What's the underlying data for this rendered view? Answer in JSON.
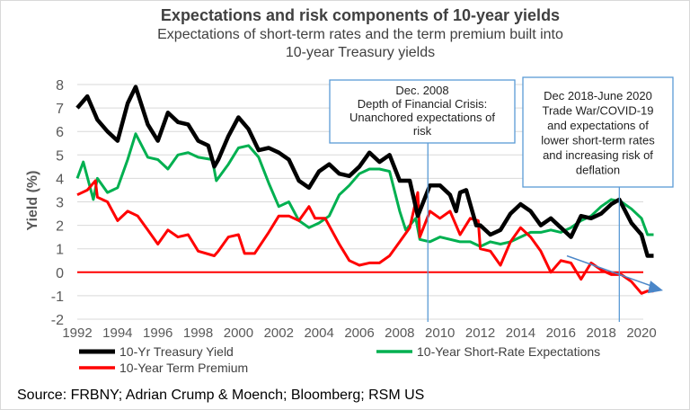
{
  "chart_data": {
    "type": "line",
    "title": "Expectations and risk components of 10-year yields",
    "subtitle": "Expectations of short-term rates and the term premium built into 10-year Treasury yields",
    "subtitle_lines": [
      "Expectations of short-term rates and the term premium built into",
      "10-year Treasury yields"
    ],
    "ylabel": "Yield (%)",
    "xlabel": "",
    "xlim": [
      1992,
      2020.7
    ],
    "ylim": [
      -2,
      8
    ],
    "xticks": [
      "1992",
      "1994",
      "1996",
      "1998",
      "2000",
      "2002",
      "2004",
      "2006",
      "2008",
      "2010",
      "2012",
      "2014",
      "2016",
      "2018",
      "2020"
    ],
    "yticks": [
      "8",
      "7",
      "6",
      "5",
      "4",
      "3",
      "2",
      "1",
      "0",
      "-1",
      "-2"
    ],
    "grid": "horizontal",
    "legend_placement": "bottom",
    "series": [
      {
        "name": "10-Yr Treasury Yield",
        "color": "#000000",
        "x": [
          1992,
          1992.5,
          1993,
          1993.5,
          1994,
          1994.5,
          1994.9,
          1995.5,
          1996,
          1996.5,
          1997,
          1997.5,
          1998,
          1998.5,
          1998.8,
          1999,
          1999.5,
          2000,
          2000.5,
          2001,
          2001.5,
          2002,
          2002.5,
          2003,
          2003.5,
          2004,
          2004.5,
          2005,
          2005.5,
          2006,
          2006.5,
          2007,
          2007.5,
          2008,
          2008.5,
          2008.9,
          2009.5,
          2010,
          2010.5,
          2010.8,
          2011,
          2011.3,
          2011.8,
          2012,
          2012.5,
          2013,
          2013.5,
          2014,
          2014.5,
          2015,
          2015.5,
          2016,
          2016.5,
          2017,
          2017.5,
          2018,
          2018.5,
          2018.9,
          2019.5,
          2019.8,
          2020,
          2020.3,
          2020.6
        ],
        "y": [
          7.0,
          7.5,
          6.5,
          6.0,
          5.6,
          7.2,
          7.9,
          6.3,
          5.6,
          6.8,
          6.4,
          6.3,
          5.6,
          5.4,
          4.5,
          4.8,
          5.8,
          6.6,
          6.1,
          5.2,
          5.3,
          5.1,
          4.8,
          3.9,
          3.6,
          4.3,
          4.6,
          4.2,
          4.1,
          4.5,
          5.1,
          4.7,
          5.0,
          3.9,
          3.9,
          2.4,
          3.7,
          3.7,
          3.3,
          2.6,
          3.4,
          3.5,
          2.0,
          2.0,
          1.6,
          1.8,
          2.5,
          2.9,
          2.6,
          2.0,
          2.3,
          1.9,
          1.5,
          2.4,
          2.3,
          2.5,
          2.9,
          3.1,
          2.1,
          1.8,
          1.6,
          0.7,
          0.7
        ]
      },
      {
        "name": "10-Year Short-Rate Expectations",
        "color": "#00b050",
        "x": [
          1992,
          1992.3,
          1992.8,
          1993,
          1993.5,
          1994,
          1994.5,
          1994.9,
          1995.5,
          1996,
          1996.5,
          1997,
          1997.5,
          1998,
          1998.7,
          1998.9,
          1999.5,
          2000,
          2000.5,
          2001,
          2001.5,
          2002,
          2002.5,
          2003,
          2003.5,
          2004,
          2004.5,
          2005,
          2005.5,
          2006,
          2006.5,
          2007,
          2007.5,
          2008,
          2008.3,
          2008.8,
          2009,
          2009.5,
          2010,
          2011,
          2011.5,
          2012,
          2012.5,
          2013,
          2013.5,
          2014,
          2014.5,
          2015,
          2015.5,
          2016,
          2016.5,
          2017,
          2017.5,
          2018,
          2018.5,
          2019,
          2019.5,
          2020,
          2020.3,
          2020.6
        ],
        "y": [
          4.0,
          4.7,
          3.1,
          4.0,
          3.4,
          3.6,
          4.8,
          5.9,
          4.9,
          4.8,
          4.4,
          5.0,
          5.1,
          4.9,
          4.8,
          3.9,
          4.6,
          5.3,
          5.4,
          4.9,
          3.8,
          2.8,
          3.0,
          2.2,
          1.9,
          2.1,
          2.4,
          3.3,
          3.7,
          4.2,
          4.4,
          4.4,
          4.3,
          2.6,
          1.8,
          2.3,
          1.4,
          1.3,
          1.5,
          1.3,
          1.3,
          1.1,
          1.3,
          1.2,
          1.3,
          1.5,
          1.7,
          1.7,
          1.8,
          1.7,
          1.9,
          2.2,
          2.4,
          2.8,
          3.1,
          3.0,
          2.7,
          2.3,
          1.6,
          1.6
        ]
      },
      {
        "name": "10-Year Term Premium",
        "color": "#ff0000",
        "x": [
          1992,
          1992.5,
          1992.9,
          1993,
          1993.5,
          1994,
          1994.5,
          1995,
          1995.5,
          1996,
          1996.5,
          1997,
          1997.5,
          1998,
          1998.8,
          1999,
          1999.5,
          2000,
          2000.3,
          2000.8,
          2001.5,
          2002,
          2002.5,
          2003,
          2003.5,
          2003.8,
          2004.3,
          2005,
          2005.5,
          2006,
          2006.5,
          2007,
          2007.5,
          2008,
          2008.5,
          2008.9,
          2009,
          2009.5,
          2010,
          2010.5,
          2011,
          2011.5,
          2011.9,
          2012,
          2012.5,
          2013,
          2013.5,
          2014,
          2014.5,
          2015,
          2015.5,
          2016,
          2016.5,
          2017,
          2017.5,
          2018,
          2018.5,
          2019,
          2019.5,
          2020,
          2020.3,
          2020.6
        ],
        "y": [
          3.3,
          3.5,
          3.9,
          3.2,
          3.0,
          2.2,
          2.6,
          2.4,
          1.8,
          1.2,
          1.8,
          1.5,
          1.6,
          0.9,
          0.7,
          0.9,
          1.5,
          1.6,
          0.8,
          0.8,
          1.7,
          2.4,
          2.4,
          2.2,
          2.8,
          2.3,
          2.3,
          1.2,
          0.5,
          0.3,
          0.4,
          0.4,
          0.7,
          1.3,
          1.9,
          3.4,
          1.5,
          2.6,
          2.3,
          2.6,
          1.6,
          2.3,
          2.2,
          1.0,
          0.9,
          0.3,
          1.3,
          1.9,
          1.5,
          0.9,
          0.0,
          0.5,
          0.4,
          -0.3,
          0.4,
          0.1,
          -0.1,
          -0.1,
          -0.4,
          -0.9,
          -0.8,
          -0.8
        ]
      }
    ],
    "reference_line": {
      "y": 0,
      "color": "#ff0000"
    },
    "annotations": [
      {
        "text_lines": [
          "Dec. 2008",
          "Depth of Financial Crisis:",
          "Unanchored expectations of",
          "risk"
        ],
        "x": 2009.4
      },
      {
        "text_lines": [
          "Dec 2018-June 2020",
          "Trade War/COVID-19",
          "and expectations of",
          "lower short-term rates",
          "and increasing risk of",
          "deflation"
        ],
        "x": 2018.9
      }
    ],
    "trend_arrow": {
      "from": [
        2016.3,
        0.7
      ],
      "to": [
        2021,
        -0.7
      ],
      "color": "#4a86c8"
    }
  },
  "source": "Source: FRBNY; Adrian Crump & Moench; Bloomberg; RSM US"
}
